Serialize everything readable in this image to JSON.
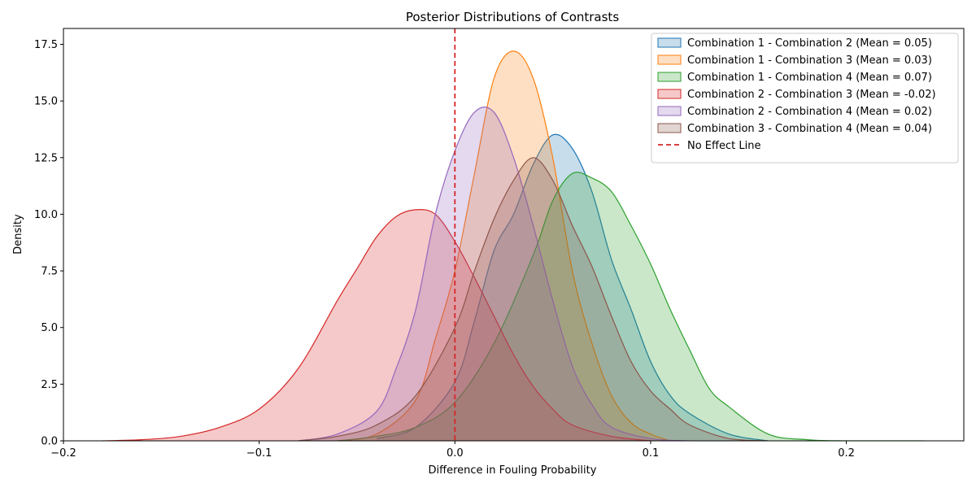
{
  "chart_data": {
    "type": "area",
    "title": "Posterior Distributions of Contrasts",
    "xlabel": "Difference in Fouling Probability",
    "ylabel": "Density",
    "xlim": [
      -0.2,
      0.26
    ],
    "ylim": [
      0,
      18.2
    ],
    "x_ticks": [
      -0.2,
      -0.1,
      0.0,
      0.1,
      0.2
    ],
    "x_tick_labels": [
      "−0.2",
      "−0.1",
      "0.0",
      "0.1",
      "0.2"
    ],
    "y_ticks": [
      0,
      2.5,
      5,
      7.5,
      10,
      12.5,
      15,
      17.5
    ],
    "y_tick_labels": [
      "0.0",
      "2.5",
      "5.0",
      "7.5",
      "10.0",
      "12.5",
      "15.0",
      "17.5"
    ],
    "grid": false,
    "legend_position": "top-right",
    "reference_line": {
      "name": "No Effect Line",
      "x": 0.0,
      "color": "#d62728",
      "style": "dashed"
    },
    "series": [
      {
        "name": "Combination 1 - Combination 2 (Mean = 0.05)",
        "color": "#1f77b4",
        "x": [
          -0.04,
          -0.02,
          0.0,
          0.01,
          0.02,
          0.03,
          0.04,
          0.05,
          0.06,
          0.07,
          0.08,
          0.09,
          0.1,
          0.11,
          0.12,
          0.14,
          0.16
        ],
        "y": [
          0.1,
          0.6,
          2.6,
          5.3,
          8.4,
          10.0,
          12.2,
          13.5,
          12.9,
          11.0,
          8.0,
          5.8,
          3.5,
          2.0,
          1.2,
          0.3,
          0.0
        ]
      },
      {
        "name": "Combination 1 - Combination 3 (Mean = 0.03)",
        "color": "#ff7f0e",
        "x": [
          -0.06,
          -0.04,
          -0.02,
          -0.01,
          0.0,
          0.01,
          0.02,
          0.03,
          0.04,
          0.05,
          0.06,
          0.07,
          0.08,
          0.09,
          0.1,
          0.11
        ],
        "y": [
          0.0,
          0.3,
          1.8,
          4.5,
          7.5,
          11.8,
          16.0,
          17.2,
          16.0,
          12.5,
          7.5,
          4.3,
          2.0,
          0.8,
          0.3,
          0.0
        ]
      },
      {
        "name": "Combination 1 - Combination 4 (Mean = 0.07)",
        "color": "#2ca02c",
        "x": [
          -0.06,
          -0.04,
          -0.02,
          0.0,
          0.02,
          0.04,
          0.05,
          0.06,
          0.07,
          0.08,
          0.09,
          0.1,
          0.11,
          0.12,
          0.13,
          0.14,
          0.16,
          0.18,
          0.2,
          0.24
        ],
        "y": [
          0.0,
          0.2,
          0.6,
          1.7,
          4.3,
          8.2,
          10.6,
          11.8,
          11.6,
          11.0,
          9.5,
          7.8,
          5.8,
          4.0,
          2.3,
          1.5,
          0.3,
          0.05,
          0.0,
          0.0
        ]
      },
      {
        "name": "Combination 2 - Combination 3 (Mean = -0.02)",
        "color": "#d62728",
        "x": [
          -0.18,
          -0.16,
          -0.14,
          -0.12,
          -0.1,
          -0.08,
          -0.06,
          -0.05,
          -0.04,
          -0.03,
          -0.02,
          -0.01,
          0.0,
          0.01,
          0.02,
          0.03,
          0.04,
          0.05,
          0.06,
          0.08,
          0.1
        ],
        "y": [
          0.0,
          0.05,
          0.2,
          0.6,
          1.4,
          3.2,
          6.2,
          7.6,
          9.0,
          9.9,
          10.2,
          10.0,
          8.8,
          7.2,
          5.5,
          3.8,
          2.4,
          1.4,
          0.7,
          0.2,
          0.0
        ]
      },
      {
        "name": "Combination 2 - Combination 4 (Mean = 0.02)",
        "color": "#9467bd",
        "x": [
          -0.08,
          -0.06,
          -0.04,
          -0.03,
          -0.02,
          -0.01,
          0.0,
          0.01,
          0.02,
          0.03,
          0.04,
          0.05,
          0.06,
          0.07,
          0.08,
          0.1,
          0.12
        ],
        "y": [
          0.0,
          0.3,
          1.3,
          3.2,
          5.8,
          10.0,
          12.8,
          14.5,
          14.5,
          12.5,
          9.5,
          6.2,
          3.3,
          1.6,
          0.6,
          0.1,
          0.0
        ]
      },
      {
        "name": "Combination 3 - Combination 4 (Mean = 0.04)",
        "color": "#8c564b",
        "x": [
          -0.08,
          -0.06,
          -0.04,
          -0.02,
          0.0,
          0.01,
          0.02,
          0.03,
          0.04,
          0.05,
          0.06,
          0.07,
          0.08,
          0.09,
          0.1,
          0.11,
          0.12,
          0.14,
          0.16
        ],
        "y": [
          0.0,
          0.2,
          0.7,
          2.0,
          5.0,
          7.5,
          9.8,
          11.5,
          12.5,
          11.5,
          9.5,
          7.7,
          5.5,
          3.5,
          2.2,
          1.4,
          0.7,
          0.1,
          0.0
        ]
      }
    ]
  }
}
